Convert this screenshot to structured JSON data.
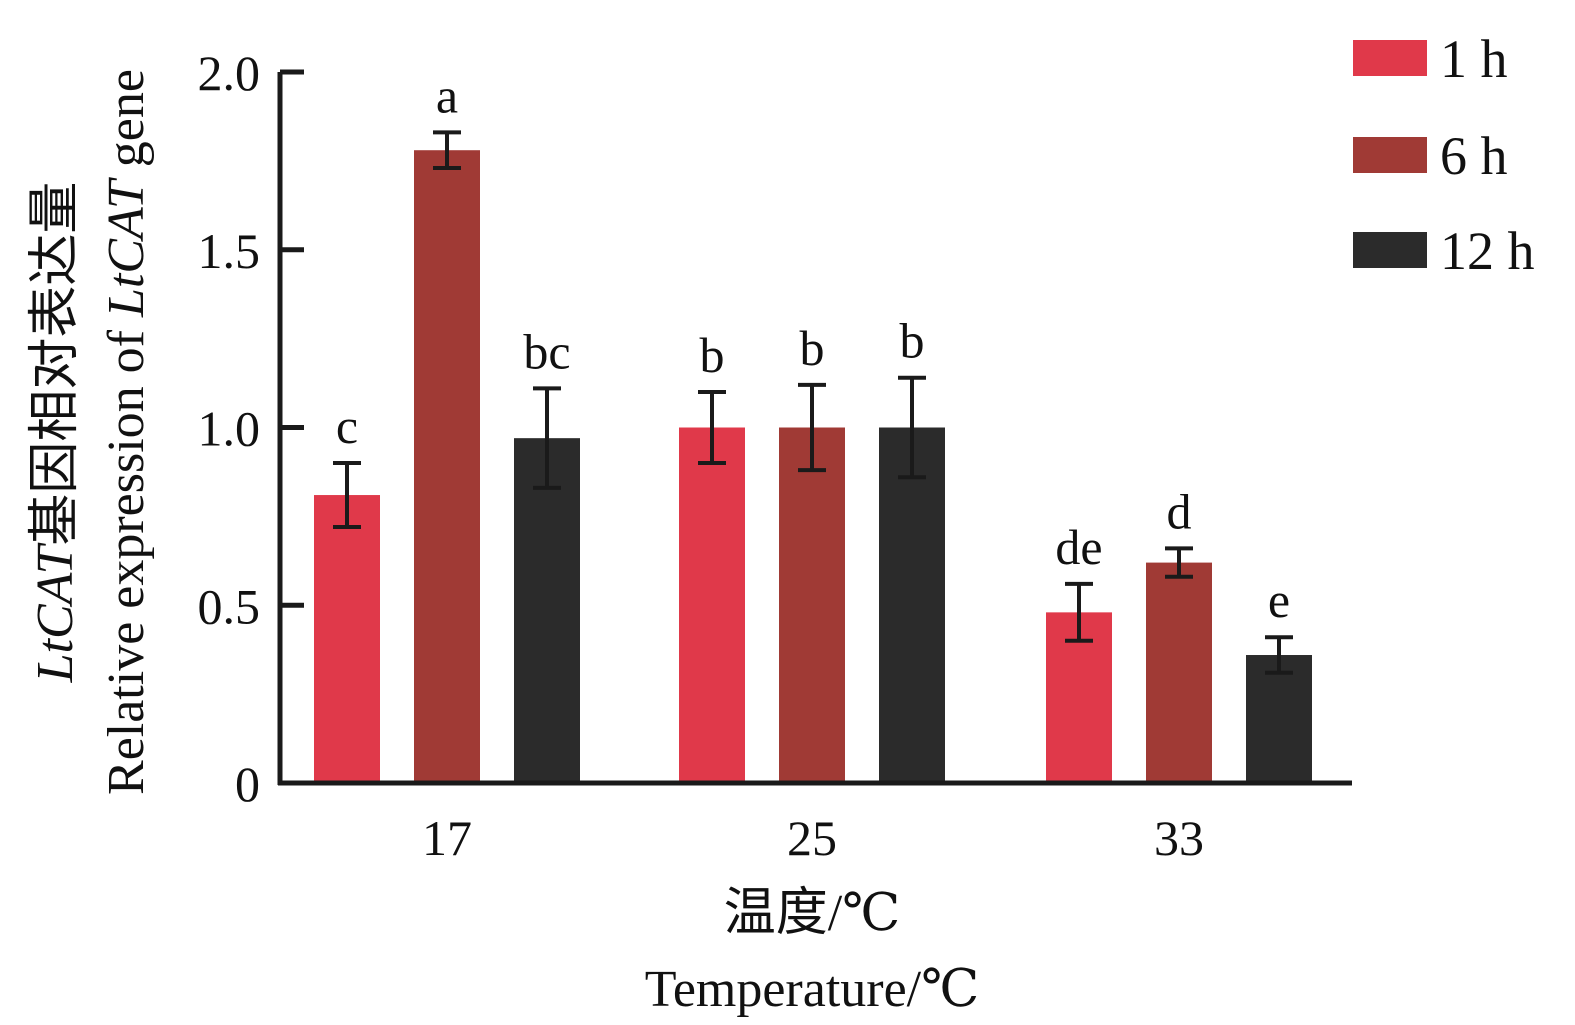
{
  "chart_data": {
    "type": "bar",
    "categories": [
      "17",
      "25",
      "33"
    ],
    "series": [
      {
        "name": "1 h",
        "color": "#e0394a",
        "values": [
          0.81,
          1.0,
          0.48
        ],
        "errors": [
          0.09,
          0.1,
          0.08
        ],
        "letters": [
          "c",
          "b",
          "de"
        ]
      },
      {
        "name": "6 h",
        "color": "#a03a35",
        "values": [
          1.78,
          1.0,
          0.62
        ],
        "errors": [
          0.05,
          0.12,
          0.04
        ],
        "letters": [
          "a",
          "b",
          "d"
        ]
      },
      {
        "name": "12 h",
        "color": "#2b2b2b",
        "values": [
          0.97,
          1.0,
          0.36
        ],
        "errors": [
          0.14,
          0.14,
          0.05
        ],
        "letters": [
          "bc",
          "b",
          "e"
        ]
      }
    ],
    "yticks": [
      "0",
      "0.5",
      "1.0",
      "1.5",
      "2.0"
    ],
    "ylim": [
      0,
      2.0
    ],
    "xlabel_cn": "温度/℃",
    "xlabel_en": "Temperature/℃",
    "ylabel_cn_gene": "LtCAT",
    "ylabel_cn_text": "基因相对表达量",
    "ylabel_en_prefix": "Relative expression of ",
    "ylabel_en_gene": "LtCAT",
    "ylabel_en_suffix": " gene",
    "legend_position": "top-right",
    "grid": false
  }
}
